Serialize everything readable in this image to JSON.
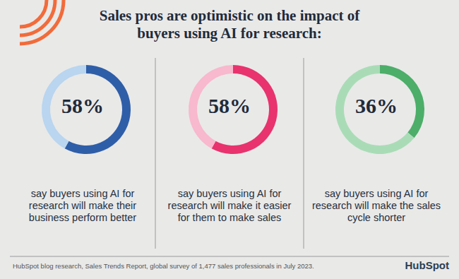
{
  "title": "Sales pros are optimistic on the impact of buyers using AI for research:",
  "source": "HubSpot blog research, Sales Trends Report, global survey of 1,477 sales professionals in July 2023.",
  "brand": "HubSpot",
  "chart_data": [
    {
      "type": "pie",
      "values": [
        58,
        42
      ],
      "value_labels": [
        "58%",
        null
      ],
      "colors": [
        "#2f5ea8",
        "#b9d5ef"
      ],
      "caption": "say buyers using AI for research will make their business perform better"
    },
    {
      "type": "pie",
      "values": [
        58,
        42
      ],
      "value_labels": [
        "58%",
        null
      ],
      "colors": [
        "#e8336e",
        "#f8b8cd"
      ],
      "caption": "say buyers using AI for research will make it easier for them to make sales"
    },
    {
      "type": "pie",
      "values": [
        36,
        64
      ],
      "value_labels": [
        "36%",
        null
      ],
      "colors": [
        "#4cae69",
        "#a9dcb6"
      ],
      "caption": "say buyers using AI for research will make the sales cycle shorter"
    }
  ]
}
